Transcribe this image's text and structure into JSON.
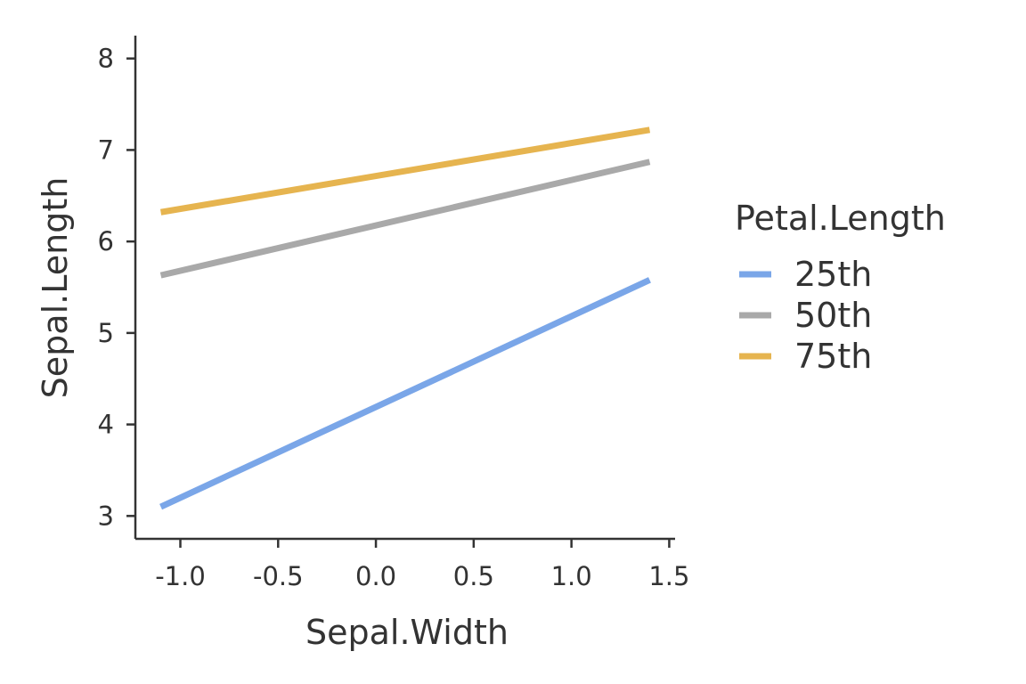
{
  "chart_data": {
    "type": "line",
    "xlabel": "Sepal.Width",
    "ylabel": "Sepal.Length",
    "xlim": [
      -1.23,
      1.53
    ],
    "ylim": [
      2.75,
      8.25
    ],
    "x_ticks": [
      -1.0,
      -0.5,
      0.0,
      0.5,
      1.0,
      1.5
    ],
    "x_tick_labels": [
      "-1.0",
      "-0.5",
      "0.0",
      "0.5",
      "1.0",
      "1.5"
    ],
    "y_ticks": [
      3,
      4,
      5,
      6,
      7,
      8
    ],
    "y_tick_labels": [
      "3",
      "4",
      "5",
      "6",
      "7",
      "8"
    ],
    "grid": false,
    "legend": {
      "title": "Petal.Length",
      "placement": "right"
    },
    "series": [
      {
        "name": "25th",
        "color": "#7aa6e8",
        "x": [
          -1.1,
          1.4
        ],
        "y": [
          3.1,
          5.58
        ]
      },
      {
        "name": "50th",
        "color": "#a9a9a9",
        "x": [
          -1.1,
          1.4
        ],
        "y": [
          5.63,
          6.87
        ]
      },
      {
        "name": "75th",
        "color": "#e6b44f",
        "x": [
          -1.1,
          1.4
        ],
        "y": [
          6.32,
          7.22
        ]
      }
    ]
  }
}
